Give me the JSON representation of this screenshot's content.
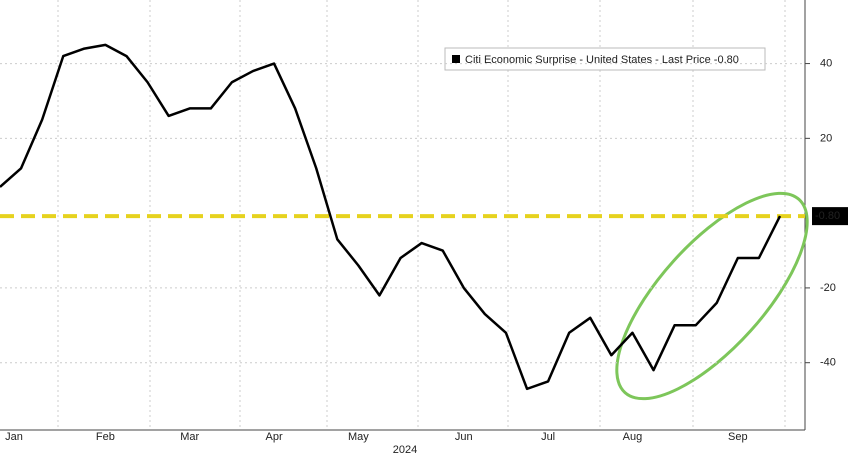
{
  "chart_data": {
    "type": "line",
    "legend_label": "Citi Economic Surprise - United States - Last Price -0.80",
    "x_label": "2024",
    "categories": [
      "Jan",
      null,
      null,
      null,
      null,
      "Feb",
      null,
      null,
      null,
      "Mar",
      null,
      null,
      null,
      "Apr",
      null,
      null,
      null,
      "May",
      null,
      null,
      null,
      null,
      "Jun",
      null,
      null,
      null,
      "Jul",
      null,
      null,
      null,
      "Aug",
      null,
      null,
      null,
      null,
      "Sep",
      null,
      null
    ],
    "series": [
      {
        "name": "Citi Economic Surprise - United States",
        "color": "#000000",
        "values": [
          7,
          12,
          25,
          42,
          44,
          45,
          42,
          35,
          26,
          28,
          28,
          35,
          38,
          40,
          28,
          12,
          -7,
          -14,
          -22,
          -12,
          -8,
          -10,
          -20,
          -27,
          -32,
          -47,
          -45,
          -32,
          -28,
          -38,
          -32,
          -42,
          -30,
          -30,
          -24,
          -12,
          -12,
          -0.8
        ]
      }
    ],
    "reference_line": {
      "value": -0.8,
      "label": "-0.80",
      "color": "#e6d21e"
    },
    "ylim": [
      -58,
      57
    ],
    "yticks": [
      -40,
      -20,
      20,
      40
    ],
    "grid": true
  }
}
